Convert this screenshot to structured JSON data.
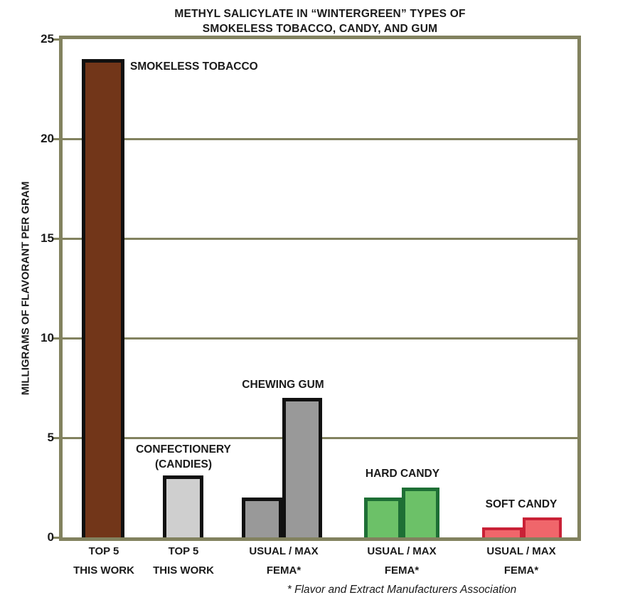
{
  "title": {
    "line1": "METHYL SALICYLATE IN “WINTERGREEN” TYPES OF",
    "line2": "SMOKELESS TOBACCO, CANDY, AND GUM"
  },
  "y_axis": {
    "label": "MILLIGRAMS OF FLAVORANT PER GRAM",
    "ticks": [
      0,
      5,
      10,
      15,
      20,
      25
    ]
  },
  "footnote": "* Flavor and Extract Manufacturers Association",
  "colors": {
    "frame": "#82825f",
    "grid": "#82825f",
    "text": "#1a1a1a"
  },
  "chart_data": {
    "type": "bar",
    "title": "METHYL SALICYLATE IN “WINTERGREEN” TYPES OF SMOKELESS TOBACCO, CANDY, AND GUM",
    "xlabel": "",
    "ylabel": "MILLIGRAMS OF FLAVORANT PER GRAM",
    "ylim": [
      0,
      25
    ],
    "yticks": [
      0,
      5,
      10,
      15,
      20,
      25
    ],
    "grid": "horizontal",
    "legend_position": "none",
    "groups": [
      {
        "annotation": [
          "SMOKELESS TOBACCO"
        ],
        "caption": [
          "TOP 5",
          "THIS WORK"
        ],
        "fill": "#723619",
        "border": "#111111",
        "bars": [
          {
            "label": "TOP 5 THIS WORK",
            "value": 24
          }
        ]
      },
      {
        "annotation": [
          "CONFECTIONERY",
          "(CANDIES)"
        ],
        "caption": [
          "TOP 5",
          "THIS WORK"
        ],
        "fill": "#cfcfcf",
        "border": "#111111",
        "bars": [
          {
            "label": "TOP 5 THIS WORK",
            "value": 3.1
          }
        ]
      },
      {
        "annotation": [
          "CHEWING GUM"
        ],
        "caption": [
          "USUAL / MAX",
          "FEMA*"
        ],
        "fill": "#999999",
        "border": "#111111",
        "bars": [
          {
            "label": "USUAL",
            "value": 2.0
          },
          {
            "label": "MAX",
            "value": 7.0
          }
        ]
      },
      {
        "annotation": [
          "HARD CANDY"
        ],
        "caption": [
          "USUAL / MAX",
          "FEMA*"
        ],
        "fill": "#6cc168",
        "border": "#1e6f35",
        "bars": [
          {
            "label": "USUAL",
            "value": 2.0
          },
          {
            "label": "MAX",
            "value": 2.5
          }
        ]
      },
      {
        "annotation": [
          "SOFT CANDY"
        ],
        "caption": [
          "USUAL / MAX",
          "FEMA*"
        ],
        "fill": "#f0666b",
        "border": "#c92136",
        "bars": [
          {
            "label": "USUAL",
            "value": 0.5
          },
          {
            "label": "MAX",
            "value": 1.0
          }
        ]
      }
    ]
  }
}
